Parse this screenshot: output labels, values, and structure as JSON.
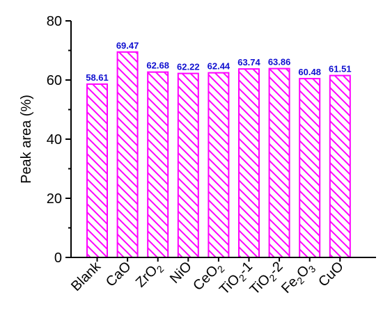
{
  "chart_data": {
    "type": "bar",
    "categories": [
      {
        "base": "Blank",
        "sub": "",
        "suffix": ""
      },
      {
        "base": "CaO",
        "sub": "",
        "suffix": ""
      },
      {
        "base": "ZrO",
        "sub": "2",
        "suffix": ""
      },
      {
        "base": "NiO",
        "sub": "",
        "suffix": ""
      },
      {
        "base": "CeO",
        "sub": "2",
        "suffix": ""
      },
      {
        "base": "TiO",
        "sub": "2",
        "suffix": "-1"
      },
      {
        "base": "TiO",
        "sub": "2",
        "suffix": "-2"
      },
      {
        "base": "Fe",
        "sub": "2",
        "suffix": "O",
        "sub2": "3"
      },
      {
        "base": "CuO",
        "sub": "",
        "suffix": ""
      }
    ],
    "values": [
      58.61,
      69.47,
      62.68,
      62.22,
      62.44,
      63.74,
      63.86,
      60.48,
      61.51
    ],
    "data_labels": [
      "58.61",
      "69.47",
      "62.68",
      "62.22",
      "62.44",
      "63.74",
      "63.86",
      "60.48",
      "61.51"
    ],
    "ylabel": "Peak area (%)",
    "xlabel": "",
    "ylim": [
      0,
      80
    ],
    "yticks": [
      0,
      20,
      40,
      60,
      80
    ],
    "ytick_labels": [
      "0",
      "20",
      "40",
      "60",
      "80"
    ],
    "grid": false,
    "bar_fill": "hatched",
    "colors": {
      "bar": "#ff00ff",
      "label": "#1010d0",
      "axis": "#000000"
    }
  }
}
